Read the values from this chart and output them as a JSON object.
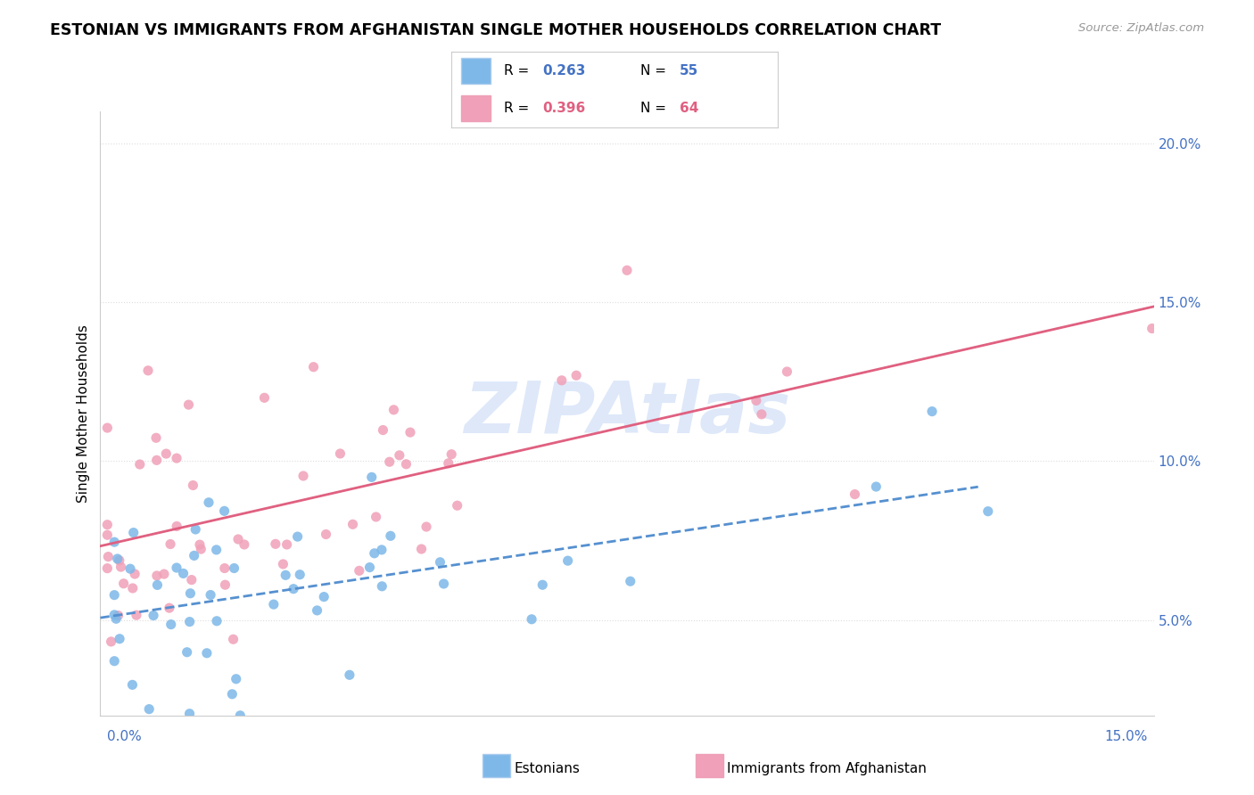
{
  "title": "ESTONIAN VS IMMIGRANTS FROM AFGHANISTAN SINGLE MOTHER HOUSEHOLDS CORRELATION CHART",
  "source": "Source: ZipAtlas.com",
  "ylabel": "Single Mother Households",
  "xmin": 0.0,
  "xmax": 0.15,
  "ymin": 0.02,
  "ymax": 0.21,
  "series1_label": "Estonians",
  "series1_color": "#7db8e8",
  "series1_line_color": "#5590d0",
  "series1_R": "0.263",
  "series1_N": "55",
  "series2_label": "Immigrants from Afghanistan",
  "series2_color": "#f0a0b8",
  "series2_line_color": "#e06080",
  "series2_R": "0.396",
  "series2_N": "64",
  "legend_R1_color": "#4472c4",
  "legend_R2_color": "#e06080",
  "watermark_text": "ZIPAtlas",
  "watermark_color": "#c8daf5",
  "grid_color": "#dddddd",
  "axis_color": "#cccccc",
  "ytick_vals": [
    0.05,
    0.1,
    0.15,
    0.2
  ],
  "ytick_labels": [
    "5.0%",
    "10.0%",
    "15.0%",
    "20.0%"
  ]
}
